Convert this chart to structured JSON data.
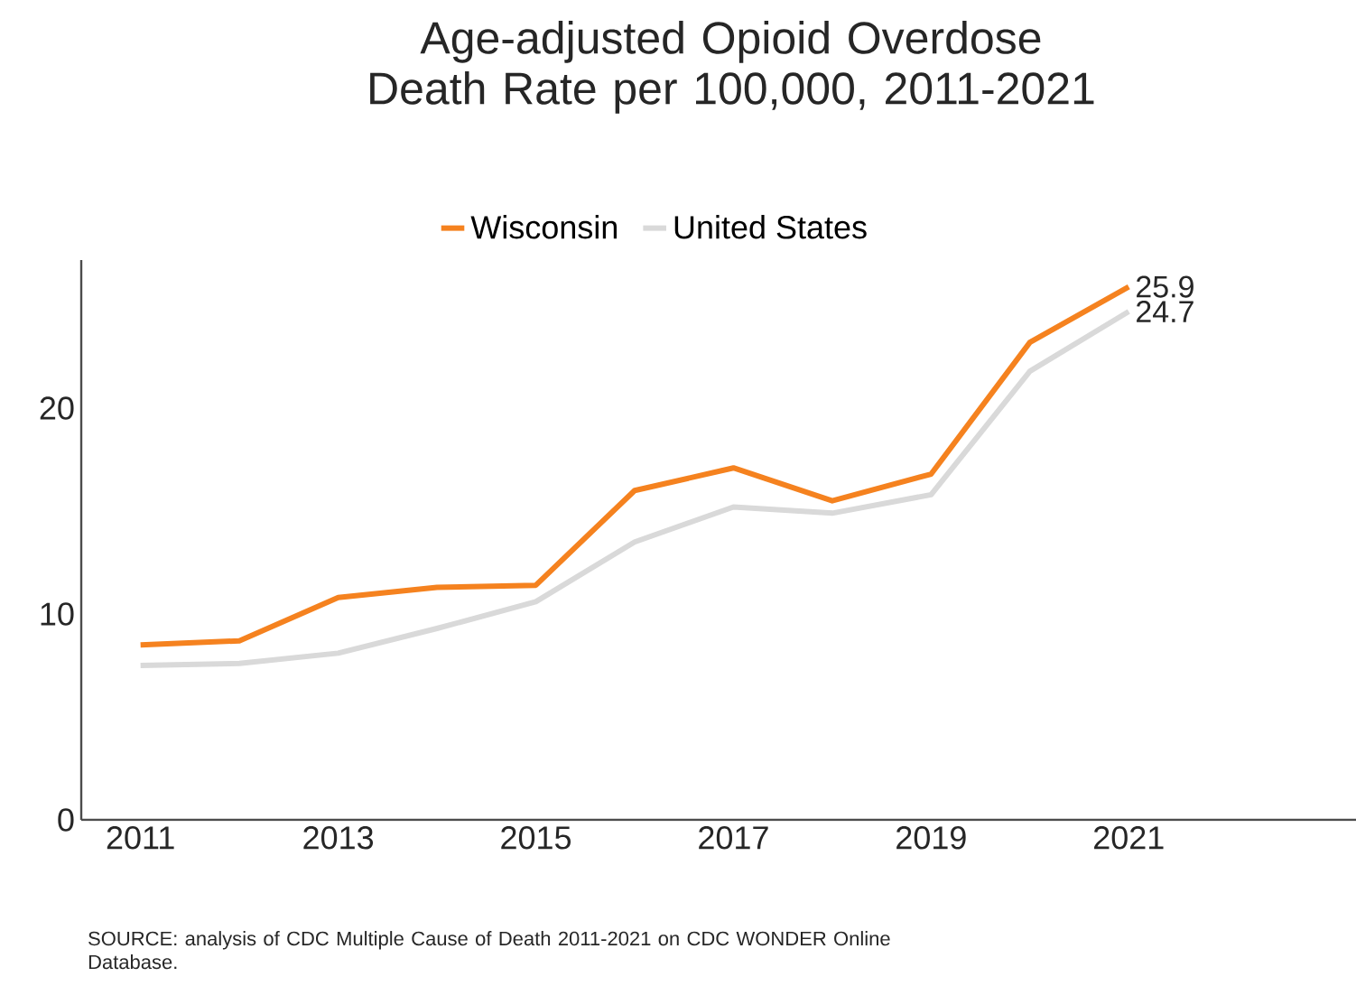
{
  "chart_data": {
    "type": "line",
    "title": "Age-adjusted Opioid Overdose\nDeath Rate per 100,000, 2011-2021",
    "x": [
      2011,
      2012,
      2013,
      2014,
      2015,
      2016,
      2017,
      2018,
      2019,
      2020,
      2021
    ],
    "series": [
      {
        "name": "Wisconsin",
        "color": "#f5821f",
        "values": [
          8.5,
          8.7,
          10.8,
          11.3,
          11.4,
          16.0,
          17.1,
          15.5,
          16.8,
          23.2,
          25.9
        ],
        "value_labels": [
          null,
          null,
          null,
          null,
          null,
          null,
          null,
          null,
          null,
          null,
          "25.9"
        ]
      },
      {
        "name": "United States",
        "color": "#d9d9d9",
        "values": [
          7.5,
          7.6,
          8.1,
          9.3,
          10.6,
          13.5,
          15.2,
          14.9,
          15.8,
          21.8,
          24.7
        ],
        "value_labels": [
          null,
          null,
          null,
          null,
          null,
          null,
          null,
          null,
          null,
          null,
          "24.7"
        ]
      }
    ],
    "xlim": [
      2010.4,
      2023.3
    ],
    "ylim": [
      0,
      27.2
    ],
    "xticks": [
      2011,
      2013,
      2015,
      2017,
      2019,
      2021
    ],
    "yticks": [
      0,
      10,
      20
    ],
    "legend": "top",
    "grid": false,
    "marker": "none",
    "line_style": "solid",
    "annotations": [
      "SOURCE: analysis of CDC Multiple Cause of Death 2011-2021 on CDC WONDER Online Database."
    ]
  }
}
